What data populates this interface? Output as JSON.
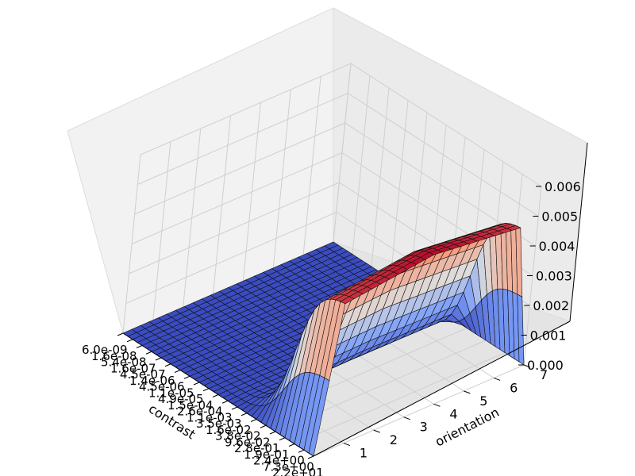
{
  "chart_data": {
    "type": "surface",
    "title": "",
    "colormap": "coolwarm",
    "xlabel": "contrast",
    "ylabel": "orientation",
    "zlabel": "",
    "x_ticks": [
      "6.0e-09",
      "1.6e-08",
      "5.4e-08",
      "1.6e-07",
      "4.5e-07",
      "1.4e-06",
      "4.5e-06",
      "1.1e-05",
      "4.9e-05",
      "1.5e-04",
      "2.6e-04",
      "1.1e-03",
      "3.5e-03",
      "1.6e-02",
      "3.8e-02",
      "9.6e-02",
      "2.8e-01",
      "1.9e-01",
      "2.4e+00",
      "7.3e+00",
      "2.2e+01"
    ],
    "y_ticks": [
      "1",
      "2",
      "3",
      "4",
      "5",
      "6",
      "7"
    ],
    "z_ticks": [
      "0.000",
      "0.001",
      "0.002",
      "0.003",
      "0.004",
      "0.005",
      "0.006"
    ],
    "ylim": [
      0,
      7
    ],
    "zlim": [
      0,
      0.006
    ],
    "grid": true,
    "surface_summary": {
      "baseline_value": 0.0,
      "peak_value": 0.0053,
      "peak_region": "highest contrast values, orientation 1–7",
      "shape": "flat near zero for low contrast, rising steeply at high contrast, ridge roughly constant across orientation"
    }
  }
}
